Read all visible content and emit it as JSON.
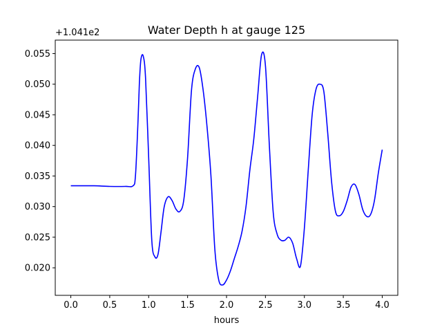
{
  "chart_data": {
    "type": "line",
    "title": "Water Depth h at gauge 125",
    "xlabel": "hours",
    "ylabel": "",
    "y_offset_label": "+1.041e2",
    "y_offset": 104.1,
    "xlim": [
      -0.2,
      4.2
    ],
    "ylim": [
      0.0155,
      0.0572
    ],
    "x_ticks": [
      0.0,
      0.5,
      1.0,
      1.5,
      2.0,
      2.5,
      3.0,
      3.5,
      4.0
    ],
    "x_tick_labels": [
      "0.0",
      "0.5",
      "1.0",
      "1.5",
      "2.0",
      "2.5",
      "3.0",
      "3.5",
      "4.0"
    ],
    "y_ticks": [
      0.02,
      0.025,
      0.03,
      0.035,
      0.04,
      0.045,
      0.05,
      0.055
    ],
    "y_tick_labels": [
      "0.020",
      "0.025",
      "0.030",
      "0.035",
      "0.040",
      "0.045",
      "0.050",
      "0.055"
    ],
    "grid": false,
    "series": [
      {
        "color": "#0000ff",
        "x": [
          0.0,
          0.1,
          0.3,
          0.5,
          0.7,
          0.8,
          0.83,
          0.86,
          0.88,
          0.9,
          0.93,
          0.96,
          1.0,
          1.04,
          1.08,
          1.12,
          1.16,
          1.2,
          1.25,
          1.3,
          1.35,
          1.4,
          1.45,
          1.5,
          1.55,
          1.6,
          1.65,
          1.7,
          1.75,
          1.8,
          1.85,
          1.9,
          1.95,
          2.0,
          2.05,
          2.1,
          2.15,
          2.2,
          2.25,
          2.3,
          2.35,
          2.4,
          2.45,
          2.5,
          2.55,
          2.6,
          2.65,
          2.7,
          2.75,
          2.8,
          2.85,
          2.9,
          2.95,
          3.0,
          3.05,
          3.1,
          3.15,
          3.2,
          3.25,
          3.3,
          3.35,
          3.4,
          3.45,
          3.5,
          3.55,
          3.6,
          3.65,
          3.7,
          3.75,
          3.8,
          3.85,
          3.9,
          3.95,
          4.0
        ],
        "y": [
          0.0334,
          0.0334,
          0.0334,
          0.0333,
          0.0333,
          0.0334,
          0.035,
          0.043,
          0.05,
          0.054,
          0.0546,
          0.051,
          0.038,
          0.0245,
          0.0218,
          0.0222,
          0.026,
          0.03,
          0.0316,
          0.031,
          0.0296,
          0.0292,
          0.031,
          0.038,
          0.049,
          0.0525,
          0.0527,
          0.049,
          0.043,
          0.035,
          0.023,
          0.018,
          0.0172,
          0.018,
          0.0195,
          0.0215,
          0.0235,
          0.026,
          0.03,
          0.036,
          0.041,
          0.048,
          0.0548,
          0.053,
          0.04,
          0.029,
          0.0255,
          0.0245,
          0.0245,
          0.025,
          0.024,
          0.0215,
          0.0203,
          0.0265,
          0.036,
          0.045,
          0.0492,
          0.05,
          0.0488,
          0.042,
          0.034,
          0.0292,
          0.0285,
          0.0292,
          0.031,
          0.0332,
          0.0336,
          0.032,
          0.0295,
          0.0284,
          0.0287,
          0.031,
          0.0355,
          0.0393
        ]
      }
    ]
  }
}
